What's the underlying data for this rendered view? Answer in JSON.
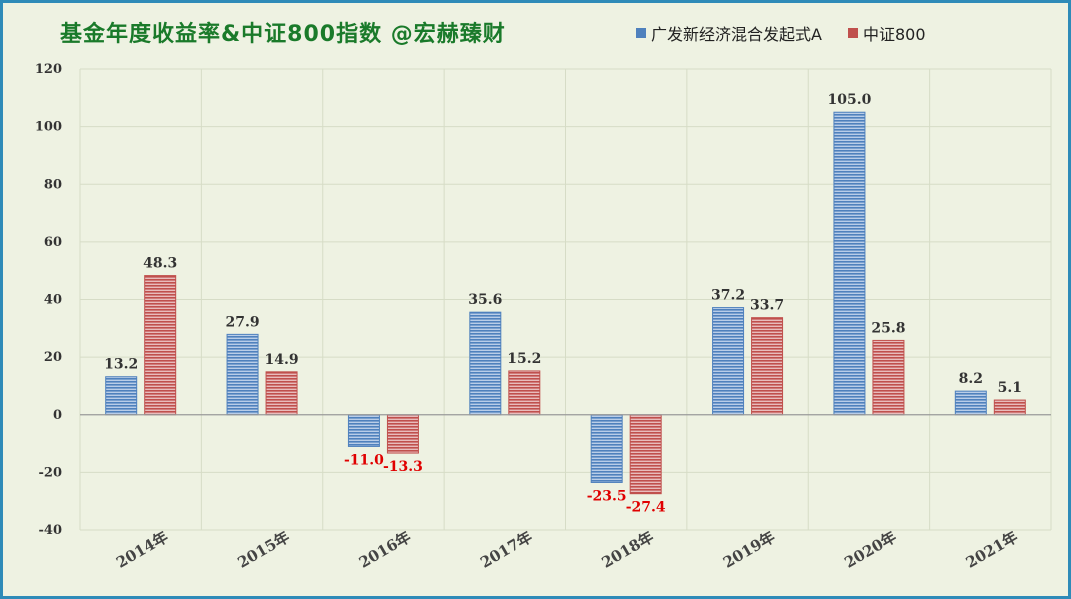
{
  "chart_data": {
    "type": "bar",
    "title": "基金年度收益率&中证800指数 @宏赫臻财",
    "categories": [
      "2014年",
      "2015年",
      "2016年",
      "2017年",
      "2018年",
      "2019年",
      "2020年",
      "2021年"
    ],
    "series": [
      {
        "name": "广发新经济混合发起式A",
        "color": "#4f81bd",
        "values": [
          13.2,
          27.9,
          -11.0,
          35.6,
          -23.5,
          37.2,
          105.0,
          8.2
        ],
        "labels": [
          "13.2",
          "27.9",
          "-11.0",
          "35.6",
          "-23.5",
          "37.2",
          "105.0",
          "8.2"
        ]
      },
      {
        "name": "中证800",
        "color": "#c0504d",
        "values": [
          48.3,
          14.9,
          -13.3,
          15.2,
          -27.4,
          33.7,
          25.8,
          5.1
        ],
        "labels": [
          "48.3",
          "14.9",
          "-13.3",
          "15.2",
          "-27.4",
          "33.7",
          "25.8",
          "5.1"
        ]
      }
    ],
    "ylim": [
      -40,
      120
    ],
    "yticks": [
      -40,
      -20,
      0,
      20,
      40,
      60,
      80,
      100,
      120
    ],
    "grid": true,
    "legend_position": "top-right",
    "negative_label_color": "#e00000",
    "positive_label_color": "#333333",
    "xlabel": "",
    "ylabel": ""
  }
}
